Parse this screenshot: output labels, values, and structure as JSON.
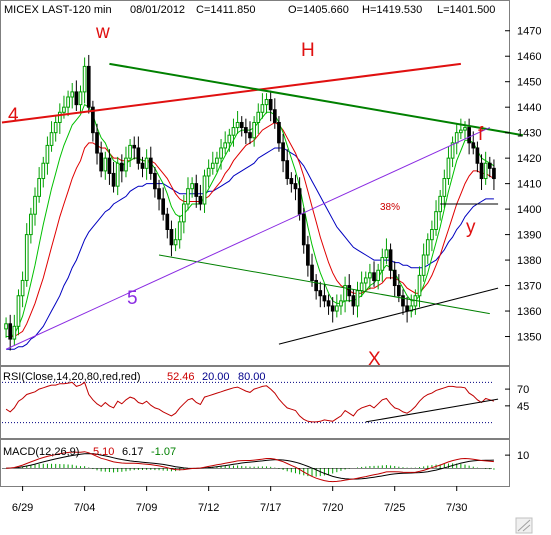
{
  "header": {
    "symbol": "MICEX LAST-120 min",
    "date": "08/01/2012",
    "close": "C=1411.850",
    "open": "O=1405.660",
    "high": "H=1419.530",
    "low": "L=1401.500"
  },
  "rsi_header": {
    "label": "RSI(Close,14,20,80,red,red)",
    "value": "52.46",
    "low": "20.00",
    "high": "80.00"
  },
  "macd_header": {
    "label": "MACD(12,26,9)",
    "v1": "5.10",
    "v2": "6.17",
    "v3": "-1.07"
  },
  "annotations": {
    "w": "w",
    "H": "H",
    "f": "f",
    "y": "y",
    "X": "X",
    "five": "5",
    "four": "4",
    "pct38": "38%"
  },
  "colors": {
    "up_candle": "#00a000",
    "down_candle": "#000000",
    "ma_fast": "#00c000",
    "ma_mid": "#e00000",
    "ma_slow": "#0000c0",
    "rsi_line": "#c00000",
    "macd_line": "#c00000",
    "signal_line": "#000000",
    "hist": "#00a000",
    "trend_green": "#008000",
    "trend_red": "#e01010",
    "trend_purple": "#8a2be2",
    "trend_black": "#000000",
    "rsi_dotted": "#000080"
  },
  "chart_data": [
    {
      "type": "candlestick",
      "title": "MICEX LAST-120 min",
      "ylim": [
        1340,
        1475
      ],
      "y_ticks": [
        1350,
        1360,
        1370,
        1380,
        1390,
        1400,
        1410,
        1420,
        1430,
        1440,
        1450,
        1460,
        1470
      ],
      "x_tick_labels": [
        "6/29",
        "7/04",
        "7/09",
        "7/12",
        "7/17",
        "7/20",
        "7/25",
        "7/30"
      ],
      "x_tick_bar_index": [
        4,
        19,
        34,
        49,
        64,
        79,
        94,
        109
      ],
      "close": [
        1355,
        1349,
        1354,
        1366,
        1372,
        1390,
        1398,
        1405,
        1412,
        1418,
        1425,
        1430,
        1434,
        1438,
        1440,
        1444,
        1446,
        1441,
        1446,
        1456,
        1440,
        1430,
        1422,
        1415,
        1420,
        1414,
        1409,
        1418,
        1415,
        1420,
        1425,
        1424,
        1418,
        1416,
        1420,
        1414,
        1408,
        1404,
        1398,
        1392,
        1386,
        1388,
        1395,
        1402,
        1408,
        1410,
        1405,
        1402,
        1413,
        1416,
        1418,
        1420,
        1424,
        1426,
        1429,
        1432,
        1434,
        1432,
        1430,
        1428,
        1434,
        1438,
        1441,
        1443,
        1439,
        1434,
        1426,
        1419,
        1412,
        1410,
        1408,
        1398,
        1386,
        1378,
        1372,
        1368,
        1366,
        1364,
        1362,
        1360,
        1362,
        1364,
        1370,
        1366,
        1362,
        1368,
        1371,
        1373,
        1375,
        1372,
        1376,
        1381,
        1384,
        1376,
        1370,
        1366,
        1362,
        1360,
        1362,
        1366,
        1374,
        1382,
        1388,
        1392,
        1399,
        1405,
        1412,
        1420,
        1426,
        1430,
        1431,
        1432,
        1426,
        1424,
        1418,
        1412,
        1418,
        1416,
        1412
      ],
      "ma_fast": [
        1350,
        1350,
        1351,
        1354,
        1358,
        1364,
        1371,
        1378,
        1386,
        1394,
        1401,
        1408,
        1414,
        1420,
        1425,
        1429,
        1433,
        1435,
        1437,
        1441,
        1440,
        1437,
        1432,
        1428,
        1426,
        1422,
        1419,
        1418,
        1417,
        1418,
        1419,
        1420,
        1420,
        1419,
        1419,
        1418,
        1416,
        1413,
        1410,
        1406,
        1401,
        1398,
        1397,
        1398,
        1400,
        1402,
        1402,
        1402,
        1405,
        1408,
        1411,
        1414,
        1418,
        1421,
        1424,
        1427,
        1430,
        1431,
        1431,
        1431,
        1432,
        1434,
        1436,
        1438,
        1438,
        1437,
        1434,
        1430,
        1425,
        1420,
        1415,
        1409,
        1401,
        1393,
        1386,
        1380,
        1375,
        1371,
        1367,
        1364,
        1363,
        1363,
        1364,
        1364,
        1364,
        1365,
        1366,
        1368,
        1370,
        1371,
        1373,
        1376,
        1378,
        1377,
        1375,
        1372,
        1369,
        1366,
        1364,
        1364,
        1366,
        1370,
        1375,
        1381,
        1387,
        1393,
        1400,
        1407,
        1413,
        1419,
        1423,
        1427,
        1427,
        1426,
        1423,
        1420,
        1419,
        1418,
        1417
      ],
      "ma_mid": [
        1350,
        1350,
        1350,
        1351,
        1352,
        1355,
        1359,
        1363,
        1368,
        1373,
        1379,
        1385,
        1391,
        1397,
        1402,
        1407,
        1412,
        1416,
        1419,
        1424,
        1426,
        1426,
        1425,
        1424,
        1424,
        1422,
        1420,
        1420,
        1419,
        1419,
        1419,
        1420,
        1420,
        1419,
        1419,
        1419,
        1418,
        1416,
        1414,
        1412,
        1409,
        1406,
        1404,
        1403,
        1403,
        1403,
        1403,
        1403,
        1404,
        1405,
        1407,
        1409,
        1411,
        1414,
        1416,
        1419,
        1421,
        1423,
        1425,
        1426,
        1427,
        1429,
        1431,
        1432,
        1433,
        1434,
        1433,
        1431,
        1428,
        1425,
        1422,
        1418,
        1413,
        1407,
        1401,
        1395,
        1389,
        1384,
        1379,
        1375,
        1372,
        1370,
        1369,
        1368,
        1367,
        1367,
        1367,
        1368,
        1369,
        1369,
        1370,
        1371,
        1373,
        1373,
        1373,
        1372,
        1371,
        1369,
        1368,
        1367,
        1367,
        1369,
        1371,
        1374,
        1378,
        1382,
        1387,
        1392,
        1397,
        1402,
        1406,
        1410,
        1413,
        1415,
        1415,
        1414,
        1414,
        1413,
        1412
      ],
      "ma_slow": [
        1345,
        1345,
        1345,
        1346,
        1346,
        1347,
        1349,
        1350,
        1352,
        1354,
        1357,
        1360,
        1363,
        1366,
        1370,
        1373,
        1377,
        1380,
        1384,
        1388,
        1391,
        1393,
        1395,
        1397,
        1399,
        1400,
        1402,
        1403,
        1404,
        1405,
        1407,
        1408,
        1409,
        1409,
        1410,
        1410,
        1410,
        1410,
        1410,
        1409,
        1408,
        1407,
        1406,
        1406,
        1406,
        1406,
        1406,
        1406,
        1406,
        1407,
        1407,
        1408,
        1409,
        1410,
        1411,
        1413,
        1414,
        1415,
        1416,
        1417,
        1418,
        1420,
        1421,
        1422,
        1423,
        1424,
        1424,
        1424,
        1423,
        1422,
        1421,
        1419,
        1417,
        1414,
        1411,
        1408,
        1405,
        1402,
        1399,
        1396,
        1393,
        1391,
        1389,
        1387,
        1385,
        1384,
        1383,
        1382,
        1381,
        1380,
        1380,
        1380,
        1380,
        1380,
        1379,
        1379,
        1378,
        1378,
        1377,
        1377,
        1377,
        1377,
        1378,
        1379,
        1380,
        1382,
        1384,
        1387,
        1389,
        1392,
        1394,
        1397,
        1399,
        1401,
        1402,
        1403,
        1404,
        1404,
        1404
      ],
      "labels": {
        "w": "w",
        "H": "H",
        "f": "f",
        "y": "y",
        "X": "X",
        "five": "5",
        "four": "4",
        "pct38": "38%"
      }
    },
    {
      "type": "line",
      "title": "RSI(Close,14,20,80,red,red)",
      "ylim": [
        0,
        100
      ],
      "y_ticks": [
        45,
        70
      ],
      "levels": [
        20,
        80
      ],
      "values": [
        40,
        36,
        42,
        52,
        56,
        62,
        64,
        66,
        70,
        72,
        74,
        76,
        76,
        78,
        78,
        79,
        80,
        74,
        76,
        80,
        62,
        54,
        48,
        44,
        50,
        45,
        42,
        52,
        48,
        54,
        58,
        56,
        50,
        48,
        52,
        46,
        42,
        40,
        36,
        33,
        30,
        34,
        42,
        48,
        54,
        56,
        50,
        47,
        58,
        60,
        62,
        64,
        66,
        68,
        70,
        72,
        73,
        70,
        67,
        65,
        70,
        72,
        74,
        75,
        70,
        64,
        55,
        48,
        42,
        40,
        38,
        30,
        25,
        22,
        21,
        21,
        22,
        24,
        23,
        22,
        26,
        30,
        38,
        34,
        30,
        38,
        42,
        44,
        46,
        42,
        48,
        54,
        56,
        48,
        42,
        40,
        36,
        34,
        38,
        44,
        52,
        58,
        62,
        64,
        68,
        70,
        72,
        74,
        74,
        73,
        73,
        72,
        64,
        60,
        54,
        50,
        56,
        54,
        52
      ]
    },
    {
      "type": "line",
      "title": "MACD(12,26,9)",
      "ylim": [
        -12,
        20
      ],
      "y_ticks": [
        10
      ],
      "macd": [
        0.0,
        0.2,
        0.6,
        1.4,
        2.4,
        3.6,
        4.8,
        6.0,
        7.2,
        8.2,
        9.0,
        9.8,
        10.4,
        11.0,
        11.6,
        12.0,
        12.4,
        12.2,
        12.2,
        12.6,
        11.8,
        10.4,
        9.0,
        7.6,
        6.8,
        5.8,
        4.8,
        4.4,
        4.0,
        3.8,
        3.8,
        3.8,
        3.6,
        3.3,
        3.1,
        2.8,
        2.3,
        1.8,
        1.1,
        0.4,
        -0.5,
        -1.0,
        -1.1,
        -1.0,
        -0.6,
        -0.2,
        0.0,
        0.2,
        0.8,
        1.4,
        2.0,
        2.6,
        3.2,
        3.8,
        4.4,
        5.0,
        5.6,
        5.8,
        5.9,
        5.9,
        6.2,
        6.6,
        7.0,
        7.4,
        7.4,
        7.0,
        6.0,
        5.0,
        3.6,
        2.2,
        0.8,
        -0.9,
        -2.8,
        -4.6,
        -6.2,
        -7.6,
        -8.6,
        -9.4,
        -10.0,
        -10.2,
        -10.0,
        -9.6,
        -9.0,
        -8.6,
        -8.2,
        -7.6,
        -7.0,
        -6.4,
        -5.6,
        -5.0,
        -4.4,
        -3.6,
        -2.8,
        -2.6,
        -2.6,
        -2.8,
        -3.0,
        -3.2,
        -3.2,
        -3.0,
        -2.4,
        -1.6,
        -0.6,
        0.4,
        1.4,
        2.4,
        3.6,
        4.8,
        5.8,
        6.6,
        7.2,
        7.4,
        7.2,
        6.8,
        6.4,
        5.9,
        5.6,
        5.4,
        5.1
      ],
      "signal": [
        0.0,
        0.1,
        0.3,
        0.6,
        1.1,
        1.7,
        2.4,
        3.2,
        4.0,
        4.8,
        5.6,
        6.4,
        7.1,
        7.8,
        8.5,
        9.1,
        9.7,
        10.2,
        10.6,
        11.0,
        11.2,
        11.0,
        10.6,
        10.0,
        9.4,
        8.7,
        8.0,
        7.3,
        6.7,
        6.1,
        5.6,
        5.2,
        4.9,
        4.6,
        4.3,
        4.0,
        3.7,
        3.3,
        2.9,
        2.4,
        1.8,
        1.2,
        0.7,
        0.3,
        0.0,
        -0.1,
        -0.1,
        0.0,
        0.2,
        0.5,
        0.8,
        1.2,
        1.6,
        2.0,
        2.5,
        3.0,
        3.5,
        4.0,
        4.4,
        4.7,
        5.0,
        5.3,
        5.6,
        6.0,
        6.3,
        6.5,
        6.5,
        6.3,
        5.9,
        5.3,
        4.6,
        3.7,
        2.6,
        1.4,
        0.1,
        -1.2,
        -2.6,
        -3.9,
        -5.1,
        -6.2,
        -7.0,
        -7.6,
        -8.0,
        -8.2,
        -8.3,
        -8.2,
        -8.0,
        -7.7,
        -7.3,
        -6.8,
        -6.3,
        -5.8,
        -5.2,
        -4.7,
        -4.3,
        -4.0,
        -3.8,
        -3.7,
        -3.6,
        -3.5,
        -3.3,
        -3.0,
        -2.6,
        -2.0,
        -1.4,
        -0.6,
        0.2,
        1.2,
        2.1,
        3.0,
        3.9,
        4.6,
        5.2,
        5.6,
        5.9,
        6.0,
        6.1,
        6.1,
        6.2
      ]
    }
  ]
}
